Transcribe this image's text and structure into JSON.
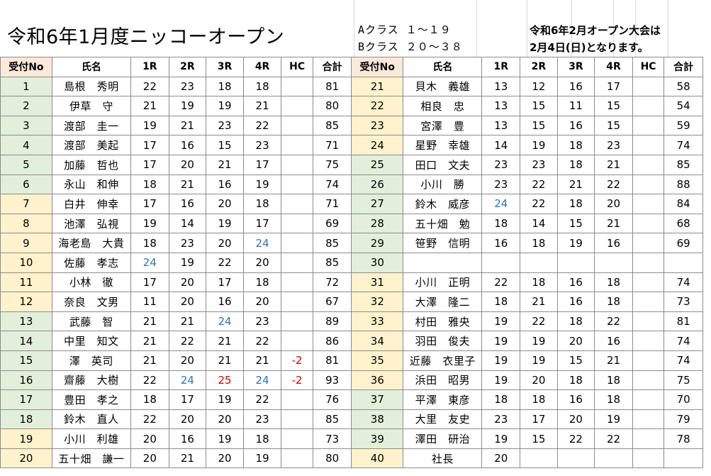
{
  "title": "令和6年1月度ニッコーオープン",
  "class_info": [
    "Aクラス １～１９",
    "Bクラス ２０～３８"
  ],
  "notice": [
    "令和6年2月オープン大会は",
    "2月4日(日)となります。"
  ],
  "headers": [
    "受付No",
    "氏名",
    "1R",
    "2R",
    "3R",
    "4R",
    "HC",
    "合計"
  ],
  "colors": {
    "green_cell": "#e2efda",
    "orange_cell": "#fff2cc",
    "header_recv": "#fde9d9",
    "blue_score": "#2e75b6",
    "red_score": "#e00000"
  },
  "left_rows": [
    {
      "no": "1",
      "name": "島根　秀明",
      "r1": "22",
      "r2": "23",
      "r3": "18",
      "r4": "18",
      "hc": "",
      "total": "81",
      "color": "green",
      "hl": {}
    },
    {
      "no": "2",
      "name": "伊草　守",
      "r1": "21",
      "r2": "19",
      "r3": "19",
      "r4": "21",
      "hc": "",
      "total": "80",
      "color": "green",
      "hl": {}
    },
    {
      "no": "3",
      "name": "渡部　圭一",
      "r1": "19",
      "r2": "21",
      "r3": "23",
      "r4": "22",
      "hc": "",
      "total": "85",
      "color": "green",
      "hl": {}
    },
    {
      "no": "4",
      "name": "渡部　美起",
      "r1": "17",
      "r2": "16",
      "r3": "15",
      "r4": "23",
      "hc": "",
      "total": "71",
      "color": "green",
      "hl": {}
    },
    {
      "no": "5",
      "name": "加藤　哲也",
      "r1": "17",
      "r2": "20",
      "r3": "21",
      "r4": "17",
      "hc": "",
      "total": "75",
      "color": "green",
      "hl": {}
    },
    {
      "no": "6",
      "name": "永山　和伸",
      "r1": "18",
      "r2": "21",
      "r3": "16",
      "r4": "19",
      "hc": "",
      "total": "74",
      "color": "green",
      "hl": {}
    },
    {
      "no": "7",
      "name": "白井　伸幸",
      "r1": "17",
      "r2": "16",
      "r3": "20",
      "r4": "18",
      "hc": "",
      "total": "71",
      "color": "orange",
      "hl": {}
    },
    {
      "no": "8",
      "name": "池澤　弘視",
      "r1": "19",
      "r2": "14",
      "r3": "19",
      "r4": "17",
      "hc": "",
      "total": "69",
      "color": "orange",
      "hl": {}
    },
    {
      "no": "9",
      "name": "海老島　大貴",
      "r1": "18",
      "r2": "23",
      "r3": "20",
      "r4": "24",
      "hc": "",
      "total": "85",
      "color": "orange",
      "hl": {
        "r4": "blue"
      }
    },
    {
      "no": "10",
      "name": "佐藤　孝志",
      "r1": "24",
      "r2": "19",
      "r3": "22",
      "r4": "20",
      "hc": "",
      "total": "85",
      "color": "orange",
      "hl": {
        "r1": "blue"
      }
    },
    {
      "no": "11",
      "name": "小林　徹",
      "r1": "17",
      "r2": "20",
      "r3": "17",
      "r4": "18",
      "hc": "",
      "total": "72",
      "color": "orange",
      "hl": {}
    },
    {
      "no": "12",
      "name": "奈良　文男",
      "r1": "11",
      "r2": "20",
      "r3": "16",
      "r4": "20",
      "hc": "",
      "total": "67",
      "color": "orange",
      "hl": {}
    },
    {
      "no": "13",
      "name": "武藤　智",
      "r1": "21",
      "r2": "21",
      "r3": "24",
      "r4": "23",
      "hc": "",
      "total": "89",
      "color": "green",
      "hl": {
        "r3": "blue"
      }
    },
    {
      "no": "14",
      "name": "中里　知文",
      "r1": "21",
      "r2": "22",
      "r3": "21",
      "r4": "22",
      "hc": "",
      "total": "86",
      "color": "green",
      "hl": {}
    },
    {
      "no": "15",
      "name": "澤　英司",
      "r1": "21",
      "r2": "20",
      "r3": "21",
      "r4": "21",
      "hc": "-2",
      "total": "81",
      "color": "green",
      "hl": {
        "hc": "red"
      }
    },
    {
      "no": "16",
      "name": "齋藤　大樹",
      "r1": "22",
      "r2": "24",
      "r3": "25",
      "r4": "24",
      "hc": "-2",
      "total": "93",
      "color": "green",
      "hl": {
        "r2": "blue",
        "r3": "red",
        "r4": "blue",
        "hc": "red"
      }
    },
    {
      "no": "17",
      "name": "豊田　孝之",
      "r1": "18",
      "r2": "17",
      "r3": "19",
      "r4": "22",
      "hc": "",
      "total": "76",
      "color": "green",
      "hl": {}
    },
    {
      "no": "18",
      "name": "鈴木　直人",
      "r1": "22",
      "r2": "20",
      "r3": "20",
      "r4": "23",
      "hc": "",
      "total": "85",
      "color": "green",
      "hl": {}
    },
    {
      "no": "19",
      "name": "小川　利雄",
      "r1": "20",
      "r2": "16",
      "r3": "19",
      "r4": "18",
      "hc": "",
      "total": "73",
      "color": "orange",
      "hl": {}
    },
    {
      "no": "20",
      "name": "五十畑　謙一",
      "r1": "20",
      "r2": "21",
      "r3": "20",
      "r4": "19",
      "hc": "",
      "total": "80",
      "color": "orange",
      "hl": {}
    }
  ],
  "right_rows": [
    {
      "no": "21",
      "name": "貝木　義雄",
      "r1": "13",
      "r2": "12",
      "r3": "16",
      "r4": "17",
      "hc": "",
      "total": "58",
      "color": "orange",
      "hl": {}
    },
    {
      "no": "22",
      "name": "相良　忠",
      "r1": "13",
      "r2": "15",
      "r3": "11",
      "r4": "15",
      "hc": "",
      "total": "54",
      "color": "orange",
      "hl": {}
    },
    {
      "no": "23",
      "name": "宮澤　豊",
      "r1": "13",
      "r2": "15",
      "r3": "16",
      "r4": "15",
      "hc": "",
      "total": "59",
      "color": "orange",
      "hl": {}
    },
    {
      "no": "24",
      "name": "星野　幸雄",
      "r1": "14",
      "r2": "19",
      "r3": "18",
      "r4": "23",
      "hc": "",
      "total": "74",
      "color": "orange",
      "hl": {}
    },
    {
      "no": "25",
      "name": "田口　文夫",
      "r1": "23",
      "r2": "23",
      "r3": "18",
      "r4": "21",
      "hc": "",
      "total": "85",
      "color": "green",
      "hl": {}
    },
    {
      "no": "26",
      "name": "小川　勝",
      "r1": "23",
      "r2": "22",
      "r3": "21",
      "r4": "22",
      "hc": "",
      "total": "88",
      "color": "green",
      "hl": {}
    },
    {
      "no": "27",
      "name": "鈴木　威彦",
      "r1": "24",
      "r2": "22",
      "r3": "18",
      "r4": "20",
      "hc": "",
      "total": "84",
      "color": "green",
      "hl": {
        "r1": "blue"
      }
    },
    {
      "no": "28",
      "name": "五十畑　勉",
      "r1": "18",
      "r2": "14",
      "r3": "15",
      "r4": "21",
      "hc": "",
      "total": "68",
      "color": "green",
      "hl": {}
    },
    {
      "no": "29",
      "name": "笹野　信明",
      "r1": "16",
      "r2": "18",
      "r3": "19",
      "r4": "16",
      "hc": "",
      "total": "69",
      "color": "green",
      "hl": {}
    },
    {
      "no": "30",
      "name": "",
      "r1": "",
      "r2": "",
      "r3": "",
      "r4": "",
      "hc": "",
      "total": "",
      "color": "green",
      "hl": {}
    },
    {
      "no": "31",
      "name": "小川　正明",
      "r1": "22",
      "r2": "18",
      "r3": "16",
      "r4": "18",
      "hc": "",
      "total": "74",
      "color": "orange",
      "hl": {}
    },
    {
      "no": "32",
      "name": "大澤　隆二",
      "r1": "18",
      "r2": "21",
      "r3": "16",
      "r4": "18",
      "hc": "",
      "total": "73",
      "color": "orange",
      "hl": {}
    },
    {
      "no": "33",
      "name": "村田　雅央",
      "r1": "19",
      "r2": "22",
      "r3": "18",
      "r4": "22",
      "hc": "",
      "total": "81",
      "color": "orange",
      "hl": {}
    },
    {
      "no": "34",
      "name": "羽田　俊夫",
      "r1": "19",
      "r2": "19",
      "r3": "20",
      "r4": "16",
      "hc": "",
      "total": "74",
      "color": "orange",
      "hl": {}
    },
    {
      "no": "35",
      "name": "近藤　衣里子",
      "r1": "19",
      "r2": "19",
      "r3": "15",
      "r4": "21",
      "hc": "",
      "total": "74",
      "color": "orange",
      "hl": {}
    },
    {
      "no": "36",
      "name": "浜田　昭男",
      "r1": "19",
      "r2": "20",
      "r3": "18",
      "r4": "18",
      "hc": "",
      "total": "75",
      "color": "orange",
      "hl": {}
    },
    {
      "no": "37",
      "name": "平澤　東彦",
      "r1": "18",
      "r2": "18",
      "r3": "16",
      "r4": "18",
      "hc": "",
      "total": "70",
      "color": "green",
      "hl": {}
    },
    {
      "no": "38",
      "name": "大里　友史",
      "r1": "23",
      "r2": "17",
      "r3": "20",
      "r4": "19",
      "hc": "",
      "total": "79",
      "color": "green",
      "hl": {}
    },
    {
      "no": "39",
      "name": "澤田　研治",
      "r1": "19",
      "r2": "15",
      "r3": "22",
      "r4": "22",
      "hc": "",
      "total": "78",
      "color": "green",
      "hl": {}
    },
    {
      "no": "40",
      "name": "社長",
      "r1": "20",
      "r2": "",
      "r3": "",
      "r4": "",
      "hc": "",
      "total": "",
      "color": "orange",
      "hl": {}
    }
  ]
}
